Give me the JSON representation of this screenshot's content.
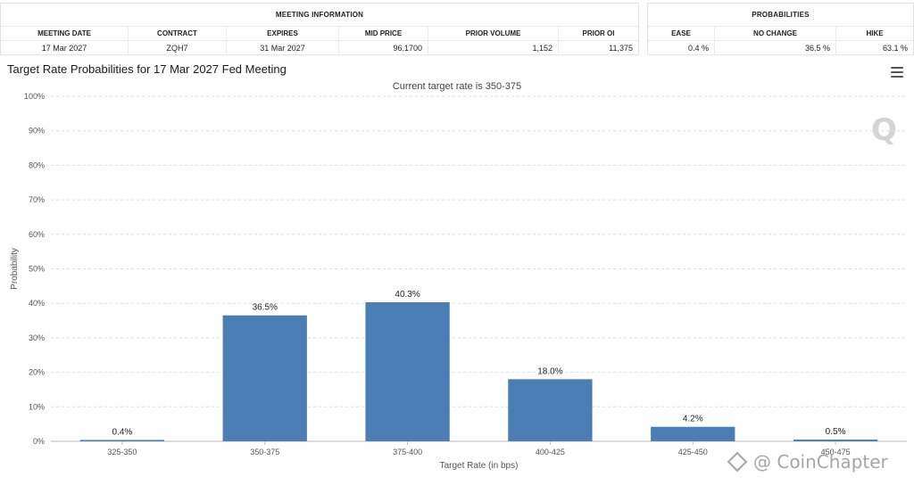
{
  "meeting_table": {
    "group_title": "MEETING INFORMATION",
    "headers": [
      "MEETING DATE",
      "CONTRACT",
      "EXPIRES",
      "MID PRICE",
      "PRIOR VOLUME",
      "PRIOR OI"
    ],
    "values": [
      "17 Mar 2027",
      "ZQH7",
      "31 Mar 2027",
      "96.1700",
      "1,152",
      "11,375"
    ]
  },
  "probabilities_table": {
    "group_title": "PROBABILITIES",
    "headers": [
      "EASE",
      "NO CHANGE",
      "HIKE"
    ],
    "values": [
      "0.4 %",
      "36.5 %",
      "63.1 %"
    ]
  },
  "menu_icon": "hamburger-menu-icon",
  "watermarks": {
    "q_mark": "Q",
    "brand_text": "@ CoinChapter",
    "brand_icon": "diamond-logo-icon"
  },
  "chart_data": {
    "type": "bar",
    "title": "Target Rate Probabilities for 17 Mar 2027 Fed Meeting",
    "subtitle": "Current target rate is 350-375",
    "xlabel": "Target Rate (in bps)",
    "ylabel": "Probability",
    "categories": [
      "325-350",
      "350-375",
      "375-400",
      "400-425",
      "425-450",
      "450-475"
    ],
    "values": [
      0.4,
      36.5,
      40.3,
      18.0,
      4.2,
      0.5
    ],
    "data_labels": [
      "0.4%",
      "36.5%",
      "40.3%",
      "18.0%",
      "4.2%",
      "0.5%"
    ],
    "ylim": [
      0,
      100
    ],
    "yticks": [
      0,
      10,
      20,
      30,
      40,
      50,
      60,
      70,
      80,
      90,
      100
    ],
    "ytick_labels": [
      "0%",
      "10%",
      "20%",
      "30%",
      "40%",
      "50%",
      "60%",
      "70%",
      "80%",
      "90%",
      "100%"
    ],
    "grid": true,
    "bar_color": "#4a7eb5"
  }
}
